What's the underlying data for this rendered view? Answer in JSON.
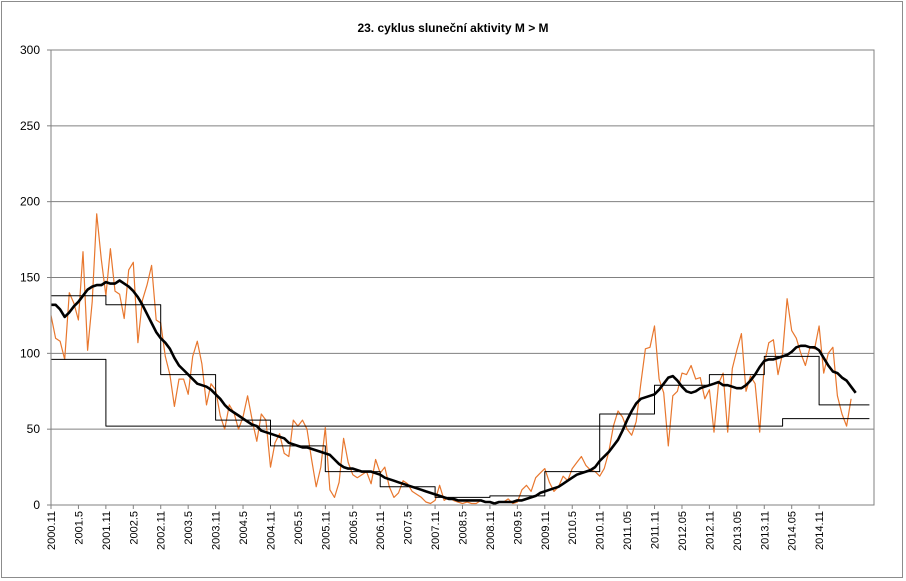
{
  "chart_data": {
    "type": "line",
    "title": "23. cyklus sluneční aktivity  M > M",
    "xlabel": "",
    "ylabel": "",
    "ylim": [
      0,
      300
    ],
    "yticks": [
      "0",
      "50",
      "100",
      "150",
      "200",
      "250",
      "300"
    ],
    "grid": "horizontal",
    "x_start": "2000.11",
    "x_step": "1 month",
    "xtick_labels": [
      "2000.11",
      "2001.5",
      "2001.11",
      "2002.5",
      "2002.11",
      "2003.5",
      "2003.11",
      "2004.5",
      "2004.11",
      "2005.5",
      "2005.11",
      "2006.5",
      "2006.11",
      "2007.5",
      "2007.11",
      "2008.5",
      "2008.11",
      "2009.5",
      "2009.11",
      "2010.5",
      "2010.11",
      "2011.05",
      "2011.11",
      "2012.05",
      "2012.11",
      "2013.05",
      "2013.11",
      "2014.05",
      "2014.11"
    ],
    "series": [
      {
        "kind": "monthly",
        "color": "#e8772e",
        "values": [
          125,
          110,
          108,
          96,
          140,
          133,
          122,
          167,
          102,
          134,
          192,
          162,
          138,
          169,
          141,
          139,
          123,
          155,
          160,
          107,
          135,
          145,
          158,
          122,
          120,
          98,
          86,
          65,
          83,
          83,
          73,
          98,
          108,
          93,
          66,
          80,
          76,
          59,
          50,
          66,
          61,
          50,
          58,
          72,
          56,
          42,
          60,
          56,
          25,
          41,
          47,
          34,
          32,
          56,
          52,
          56,
          50,
          30,
          12,
          25,
          51,
          10,
          5,
          15,
          44,
          28,
          20,
          18,
          20,
          22,
          14,
          30,
          21,
          25,
          12,
          5,
          8,
          16,
          14,
          9,
          7,
          5,
          2,
          1,
          3,
          13,
          3,
          5,
          3,
          2,
          1,
          2,
          1,
          1,
          3,
          2,
          2,
          1,
          2,
          2,
          4,
          1,
          2,
          10,
          13,
          9,
          18,
          21,
          24,
          15,
          9,
          12,
          19,
          16,
          24,
          28,
          32,
          26,
          23,
          22,
          19,
          24,
          35,
          52,
          62,
          58,
          50,
          46,
          55,
          80,
          103,
          104,
          118,
          83,
          74,
          39,
          72,
          75,
          87,
          86,
          92,
          83,
          84,
          70,
          76,
          48,
          80,
          87,
          48,
          90,
          102,
          113,
          75,
          85,
          80,
          48,
          93,
          107,
          109,
          86,
          100,
          136,
          115,
          110,
          100,
          92,
          104,
          103,
          118,
          87,
          100,
          104,
          72,
          60,
          52,
          70
        ]
      },
      {
        "kind": "smoothed",
        "color": "#000000",
        "values": [
          132,
          132,
          129,
          124,
          127,
          131,
          134,
          138,
          142,
          144,
          145,
          145,
          147,
          146,
          146,
          148,
          146,
          144,
          141,
          137,
          132,
          126,
          120,
          114,
          110,
          107,
          103,
          97,
          92,
          89,
          86,
          83,
          80,
          79,
          78,
          76,
          73,
          70,
          66,
          63,
          61,
          59,
          57,
          55,
          53,
          52,
          49,
          48,
          47,
          46,
          45,
          44,
          41,
          40,
          39,
          38,
          38,
          37,
          36,
          35,
          34,
          33,
          30,
          27,
          25,
          24,
          24,
          23,
          22,
          22,
          22,
          21,
          20,
          18,
          17,
          16,
          15,
          14,
          13,
          12,
          11,
          10,
          9,
          8,
          7,
          6,
          5,
          4,
          4,
          3,
          3,
          3,
          3,
          3,
          3,
          2,
          2,
          1,
          2,
          2,
          2,
          2,
          3,
          3,
          4,
          5,
          6,
          8,
          9,
          10,
          11,
          12,
          14,
          16,
          18,
          20,
          21,
          22,
          23,
          25,
          29,
          32,
          35,
          39,
          43,
          49,
          56,
          62,
          67,
          70,
          71,
          72,
          73,
          76,
          80,
          84,
          85,
          82,
          78,
          75,
          74,
          75,
          77,
          78,
          79,
          80,
          81,
          79,
          79,
          78,
          77,
          77,
          79,
          82,
          86,
          91,
          95,
          96,
          96,
          97,
          98,
          99,
          101,
          104,
          105,
          105,
          104,
          104,
          102,
          97,
          92,
          88,
          87,
          84,
          82,
          78,
          74
        ]
      },
      {
        "kind": "yearly-mean",
        "color": "#000000",
        "steps": [
          [
            0,
            138
          ],
          [
            12,
            132
          ],
          [
            24,
            86
          ],
          [
            36,
            56
          ],
          [
            48,
            39
          ],
          [
            60,
            22
          ],
          [
            72,
            12
          ],
          [
            84,
            5
          ],
          [
            96,
            6
          ],
          [
            108,
            22
          ],
          [
            120,
            60
          ],
          [
            132,
            79
          ],
          [
            144,
            86
          ],
          [
            156,
            98
          ],
          [
            168,
            66
          ]
        ]
      },
      {
        "kind": "cycle-mean",
        "color": "#000000",
        "steps": [
          [
            0,
            96
          ],
          [
            11,
            96
          ],
          [
            12,
            52
          ],
          [
            158,
            52
          ],
          [
            160,
            57
          ],
          [
            177,
            57
          ]
        ]
      }
    ]
  }
}
